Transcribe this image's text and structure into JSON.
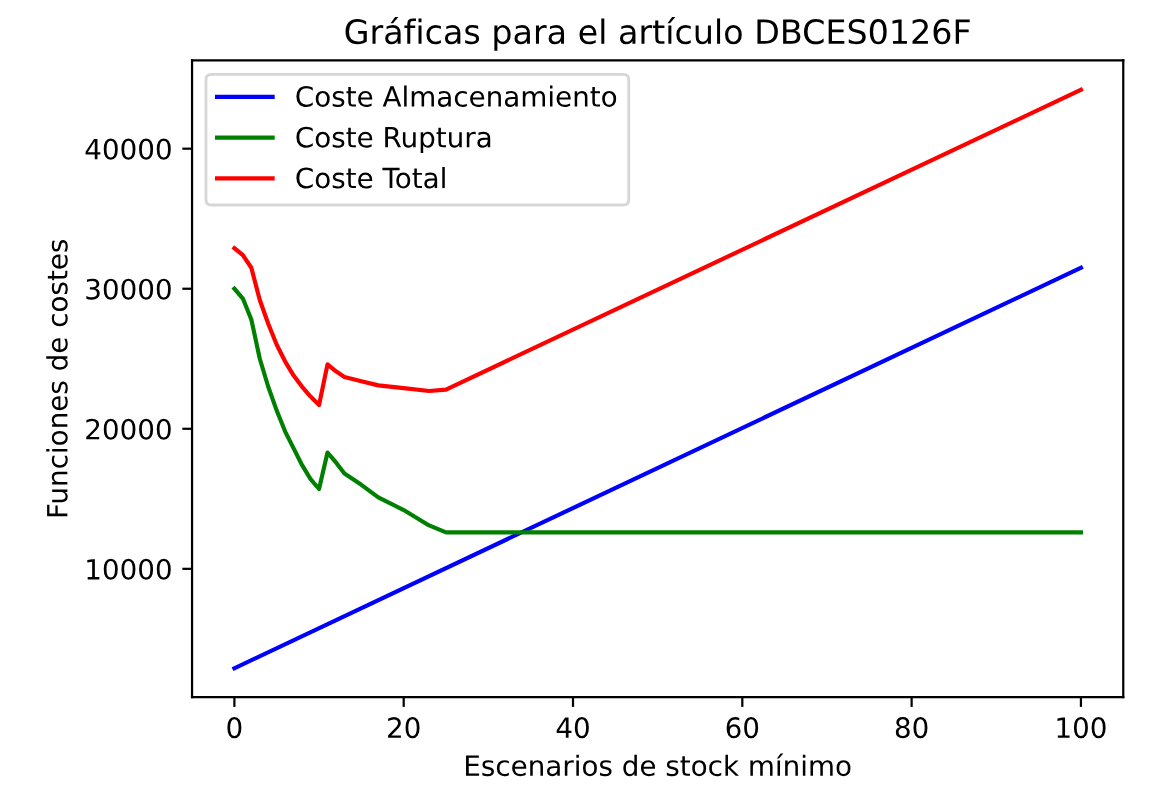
{
  "chart_data": {
    "type": "line",
    "title": "Gráficas para el artículo DBCES0126F",
    "xlabel": "Escenarios de stock mínimo",
    "ylabel": "Funciones de costes",
    "xlim": [
      -5,
      105
    ],
    "ylim": [
      835,
      46300
    ],
    "xticks": [
      0,
      20,
      40,
      60,
      80,
      100
    ],
    "yticks": [
      10000,
      20000,
      30000,
      40000
    ],
    "grid": false,
    "legend": "top left",
    "marker": "none",
    "line_style": "solid",
    "series": [
      {
        "name": "Coste Almacenamiento",
        "color": "#0000ff",
        "x": [
          0,
          100
        ],
        "values": [
          2900,
          31500
        ]
      },
      {
        "name": "Coste Ruptura",
        "color": "#008000",
        "x": [
          0,
          1,
          2,
          3,
          4,
          5,
          6,
          7,
          8,
          9,
          10,
          11,
          12,
          13,
          15,
          17,
          20,
          23,
          25,
          100
        ],
        "values": [
          30000,
          29300,
          27800,
          25000,
          23000,
          21300,
          19800,
          18600,
          17400,
          16400,
          15700,
          18300,
          17600,
          16800,
          16000,
          15100,
          14200,
          13100,
          12600,
          12600
        ]
      },
      {
        "name": "Coste Total",
        "color": "#ff0000",
        "x": [
          0,
          1,
          2,
          3,
          4,
          5,
          6,
          7,
          8,
          9,
          10,
          11,
          12,
          13,
          15,
          17,
          20,
          23,
          25,
          100
        ],
        "values": [
          32900,
          32400,
          31500,
          29200,
          27500,
          26000,
          24800,
          23800,
          23000,
          22300,
          21700,
          24600,
          24100,
          23700,
          23400,
          23100,
          22900,
          22700,
          22800,
          44200
        ]
      }
    ]
  }
}
